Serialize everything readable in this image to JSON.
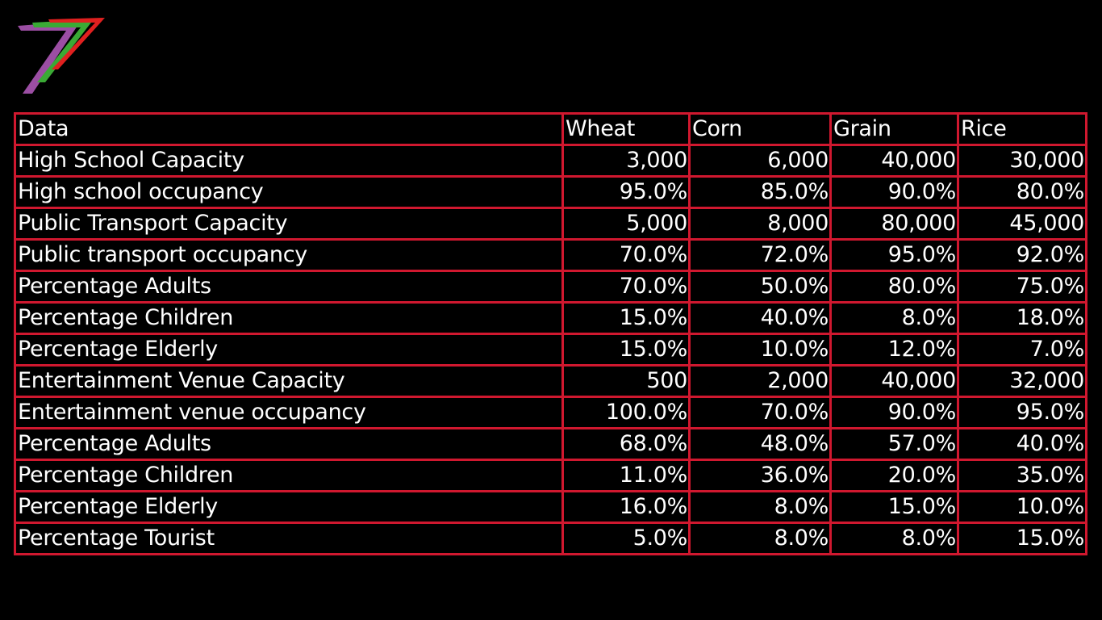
{
  "table": {
    "headers": [
      "Data",
      "Wheat",
      "Corn",
      "Grain",
      "Rice"
    ],
    "rows": [
      [
        "High School Capacity",
        "3,000",
        "6,000",
        "40,000",
        "30,000"
      ],
      [
        "High school occupancy",
        "95.0%",
        "85.0%",
        "90.0%",
        "80.0%"
      ],
      [
        "Public Transport Capacity",
        "5,000",
        "8,000",
        "80,000",
        "45,000"
      ],
      [
        "Public transport occupancy",
        "70.0%",
        "72.0%",
        "95.0%",
        "92.0%"
      ],
      [
        "Percentage Adults",
        "70.0%",
        "50.0%",
        "80.0%",
        "75.0%"
      ],
      [
        "Percentage Children",
        "15.0%",
        "40.0%",
        "8.0%",
        "18.0%"
      ],
      [
        "Percentage Elderly",
        "15.0%",
        "10.0%",
        "12.0%",
        "7.0%"
      ],
      [
        "Entertainment Venue Capacity",
        "500",
        "2,000",
        "40,000",
        "32,000"
      ],
      [
        "Entertainment venue occupancy",
        "100.0%",
        "70.0%",
        "90.0%",
        "95.0%"
      ],
      [
        "Percentage Adults",
        "68.0%",
        "48.0%",
        "57.0%",
        "40.0%"
      ],
      [
        "Percentage Children",
        "11.0%",
        "36.0%",
        "20.0%",
        "35.0%"
      ],
      [
        "Percentage Elderly",
        "16.0%",
        "8.0%",
        "15.0%",
        "10.0%"
      ],
      [
        "Percentage Tourist",
        "5.0%",
        "8.0%",
        "8.0%",
        "15.0%"
      ]
    ]
  },
  "colors": {
    "background": "#000000",
    "text": "#ffffff",
    "grid": "#d0182f",
    "logo_red": "#e0201f",
    "logo_green": "#3aaa35",
    "logo_purple": "#9b4ea3"
  },
  "icons": {
    "logo": "seven-logo-icon"
  }
}
